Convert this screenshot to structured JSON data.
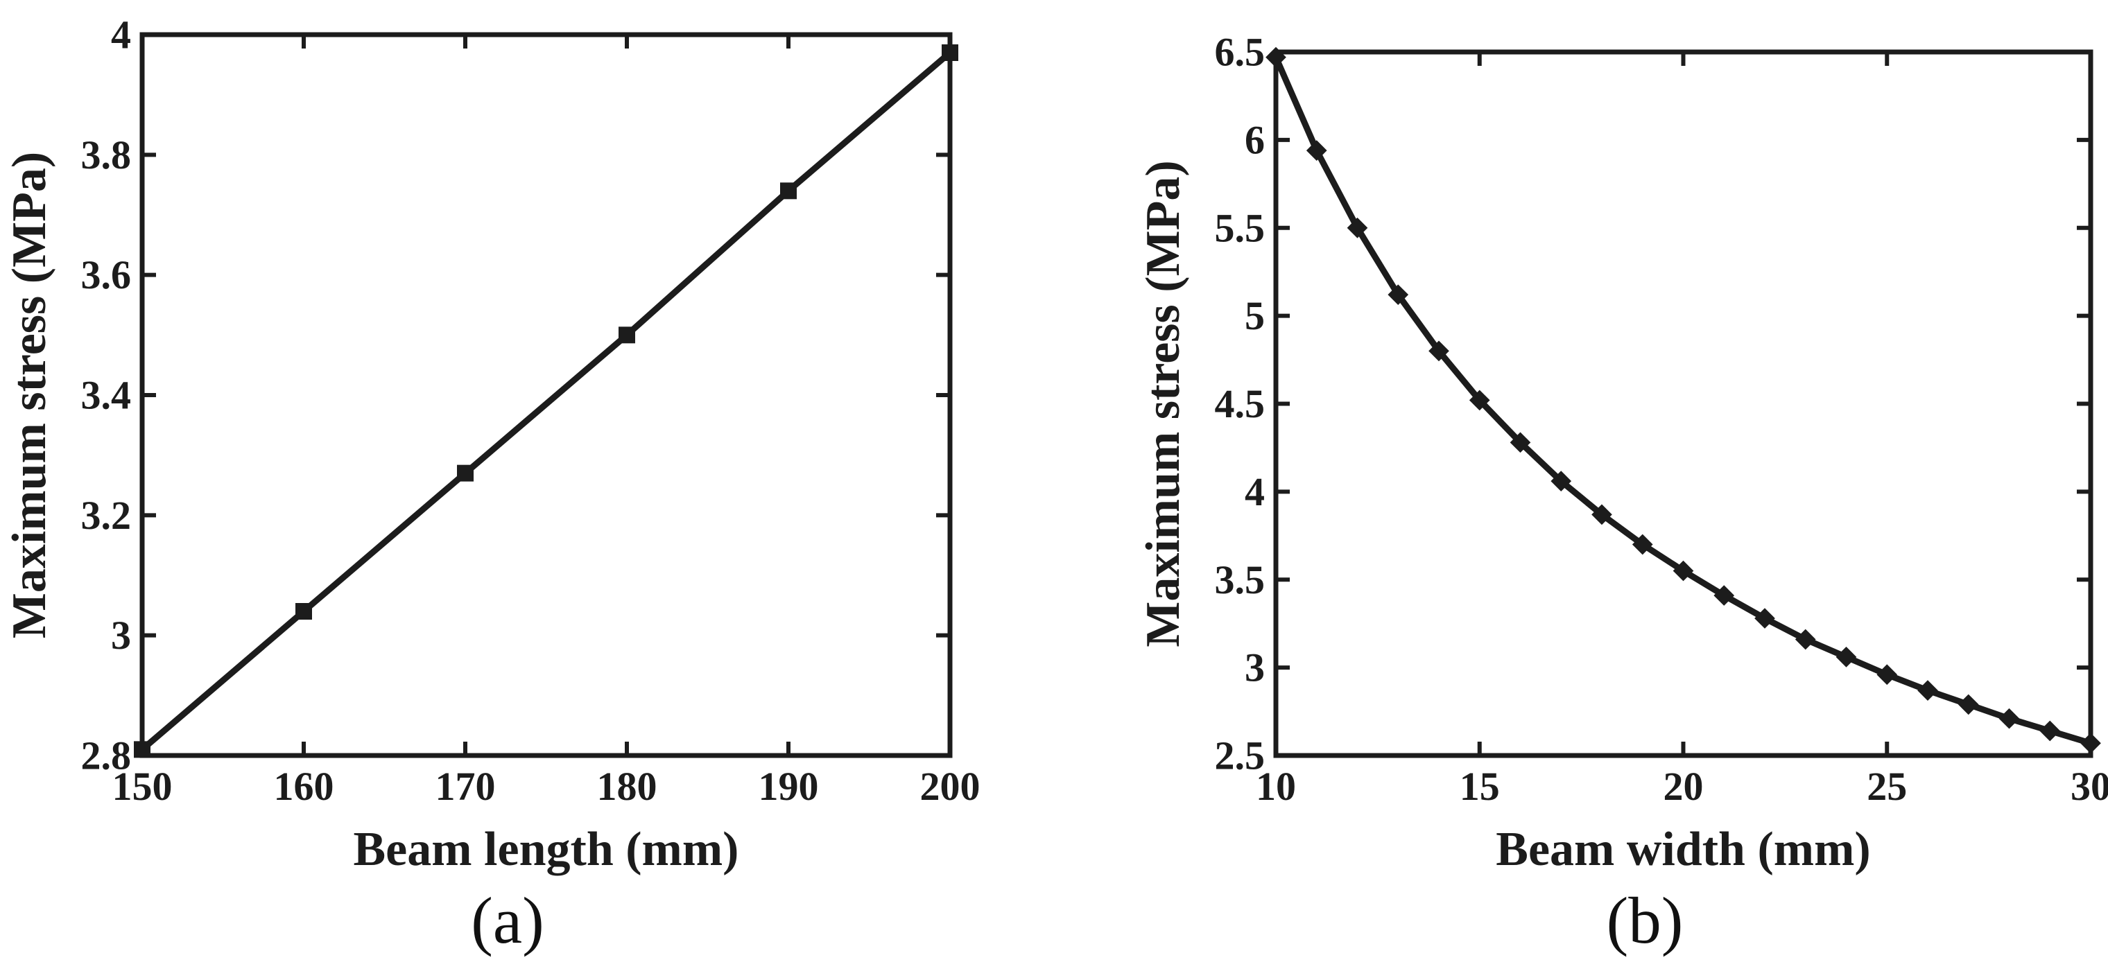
{
  "colors": {
    "background": "#ffffff",
    "ink": "#1c1c1c"
  },
  "chart_data": [
    {
      "type": "line",
      "panel": "a",
      "caption": "(a)",
      "title": "",
      "xlabel": "Beam length (mm)",
      "ylabel": "Maximum stress (MPa)",
      "x": [
        150,
        160,
        170,
        180,
        190,
        200
      ],
      "y": [
        2.81,
        3.04,
        3.27,
        3.5,
        3.74,
        3.97
      ],
      "xlim": [
        150,
        200
      ],
      "ylim": [
        2.8,
        4.0
      ],
      "xticks": [
        150,
        160,
        170,
        180,
        190,
        200
      ],
      "xtick_labels": [
        "150",
        "160",
        "170",
        "180",
        "190",
        "200"
      ],
      "yticks": [
        2.8,
        3.0,
        3.2,
        3.4,
        3.6,
        3.8,
        4.0
      ],
      "ytick_labels": [
        "2.8",
        "3",
        "3.2",
        "3.4",
        "3.6",
        "3.8",
        "4"
      ],
      "marker": "square",
      "line_color": "#1c1c1c",
      "grid": false,
      "legend": null
    },
    {
      "type": "line",
      "panel": "b",
      "caption": "(b)",
      "title": "",
      "xlabel": "Beam width (mm)",
      "ylabel": "Maximum stress (MPa)",
      "x": [
        10,
        11,
        12,
        13,
        14,
        15,
        16,
        17,
        18,
        19,
        20,
        21,
        22,
        23,
        24,
        25,
        26,
        27,
        28,
        29,
        30
      ],
      "y": [
        6.47,
        5.94,
        5.5,
        5.12,
        4.8,
        4.52,
        4.28,
        4.06,
        3.87,
        3.7,
        3.55,
        3.41,
        3.28,
        3.16,
        3.06,
        2.96,
        2.87,
        2.79,
        2.71,
        2.64,
        2.57
      ],
      "xlim": [
        10,
        30
      ],
      "ylim": [
        2.5,
        6.5
      ],
      "xticks": [
        10,
        15,
        20,
        25,
        30
      ],
      "xtick_labels": [
        "10",
        "15",
        "20",
        "25",
        "30"
      ],
      "yticks": [
        2.5,
        3.0,
        3.5,
        4.0,
        4.5,
        5.0,
        5.5,
        6.0,
        6.5
      ],
      "ytick_labels": [
        "2.5",
        "3",
        "3.5",
        "4",
        "4.5",
        "5",
        "5.5",
        "6",
        "6.5"
      ],
      "marker": "diamond",
      "line_color": "#1c1c1c",
      "grid": false,
      "legend": null
    }
  ]
}
